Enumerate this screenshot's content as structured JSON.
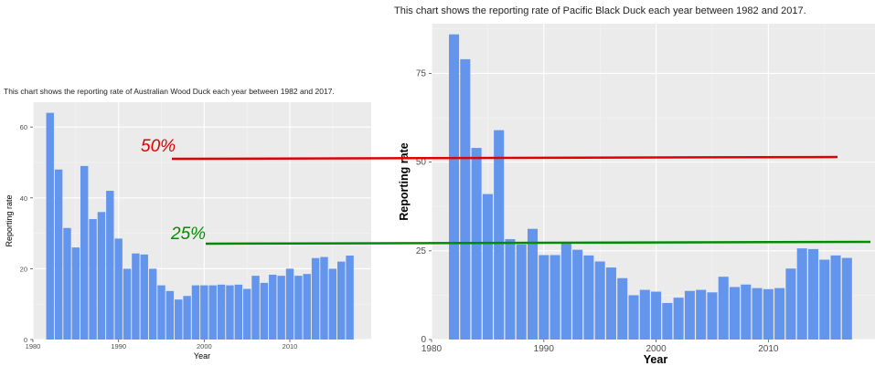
{
  "chart_data": [
    {
      "type": "bar",
      "title": "This chart shows the reporting rate of Australian Wood Duck each year between 1982 and 2017.",
      "xlabel": "Year",
      "ylabel": "Reporting rate",
      "x": [
        1982,
        1983,
        1984,
        1985,
        1986,
        1987,
        1988,
        1989,
        1990,
        1991,
        1992,
        1993,
        1994,
        1995,
        1996,
        1997,
        1998,
        1999,
        2000,
        2001,
        2002,
        2003,
        2004,
        2005,
        2006,
        2007,
        2008,
        2009,
        2010,
        2011,
        2012,
        2013,
        2014,
        2015,
        2016,
        2017
      ],
      "values": [
        64,
        48,
        31.5,
        26,
        49,
        34,
        36,
        42,
        28.5,
        20,
        24.3,
        24,
        20,
        15.3,
        13.7,
        11.3,
        12.3,
        15.3,
        15.3,
        15.3,
        15.5,
        15.3,
        15.5,
        14.3,
        18,
        16,
        18.3,
        18,
        20,
        18,
        18.5,
        23,
        23.3,
        20,
        22,
        23.7
      ],
      "xlim": [
        1980,
        2019.5
      ],
      "ylim": [
        0,
        67
      ],
      "xticks": [
        1980,
        1990,
        2000,
        2010
      ],
      "yticks": [
        0,
        20,
        40,
        60
      ],
      "bar_color": "#6495ed",
      "panel_bg": "#ebebeb",
      "grid": true
    },
    {
      "type": "bar",
      "title": "This chart shows the reporting rate of Pacific Black Duck each year between 1982 and 2017.",
      "xlabel": "Year",
      "ylabel": "Reporting rate",
      "x": [
        1982,
        1983,
        1984,
        1985,
        1986,
        1987,
        1988,
        1989,
        1990,
        1991,
        1992,
        1993,
        1994,
        1995,
        1996,
        1997,
        1998,
        1999,
        2000,
        2001,
        2002,
        2003,
        2004,
        2005,
        2006,
        2007,
        2008,
        2009,
        2010,
        2011,
        2012,
        2013,
        2014,
        2015,
        2016,
        2017
      ],
      "values": [
        86,
        79,
        54,
        41,
        59,
        28.3,
        26.8,
        31.2,
        23.8,
        23.8,
        27,
        25.3,
        23.7,
        22,
        20.3,
        17.3,
        12.5,
        14,
        13.5,
        10.3,
        11.8,
        13.7,
        14,
        13.3,
        17.7,
        14.8,
        15.5,
        14.5,
        14.2,
        14.5,
        20,
        25.7,
        25.5,
        22.5,
        23.7,
        23
      ],
      "xlim": [
        1980,
        2019.5
      ],
      "ylim": [
        0,
        89
      ],
      "xticks": [
        1980,
        1990,
        2000,
        2010
      ],
      "yticks": [
        0,
        25,
        50,
        75
      ],
      "bar_color": "#6495ed",
      "panel_bg": "#ebebeb",
      "grid": true
    }
  ],
  "annotations": {
    "line50": {
      "label": "50%",
      "color": "#e00000"
    },
    "line25": {
      "label": "25%",
      "color": "#008c00"
    }
  }
}
